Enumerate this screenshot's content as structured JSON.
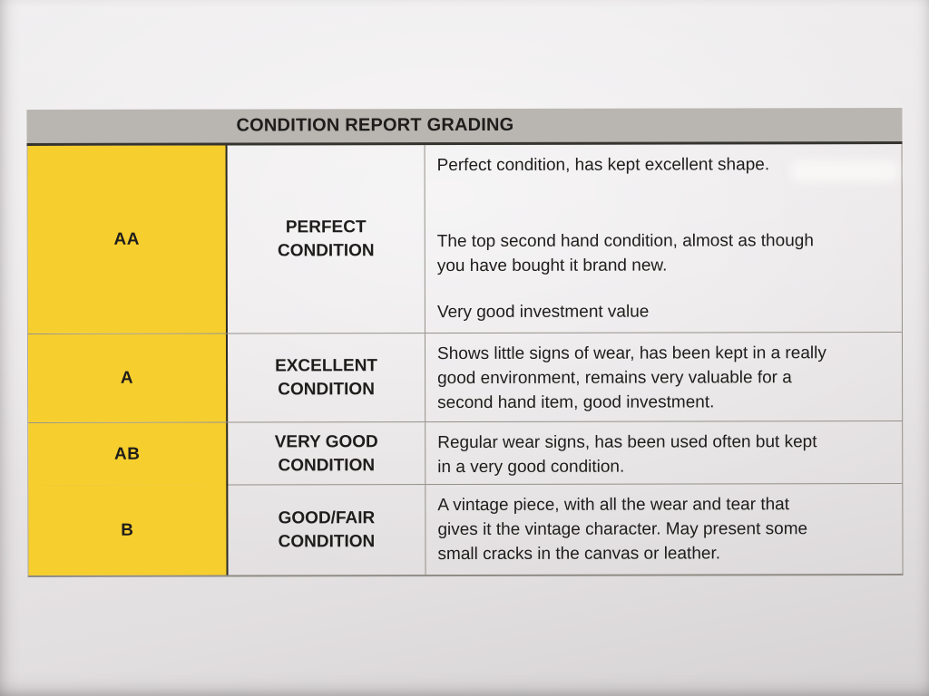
{
  "table": {
    "title": "CONDITION REPORT GRADING",
    "rows": [
      {
        "grade": "AA",
        "condition": [
          "PERFECT",
          "CONDITION"
        ],
        "paragraphs": [
          [
            "Perfect condition, has kept excellent shape."
          ],
          [
            "The top second hand condition, almost as though",
            "you have bought it brand new."
          ],
          [
            "Very good investment value"
          ]
        ]
      },
      {
        "grade": "A",
        "condition": [
          "EXCELLENT",
          "CONDITION"
        ],
        "paragraphs": [
          [
            "Shows little signs of wear, has been kept in a really",
            "good environment, remains very valuable for a",
            "second hand item, good investment."
          ]
        ]
      },
      {
        "grade": "AB",
        "condition": [
          "VERY GOOD",
          "CONDITION"
        ],
        "paragraphs": [
          [
            "Regular wear signs, has been used often but kept",
            "in a very good condition."
          ]
        ]
      },
      {
        "grade": "B",
        "condition": [
          "GOOD/FAIR",
          "CONDITION"
        ],
        "paragraphs": [
          [
            "A vintage piece, with all the wear and tear that",
            "gives it the vintage character. May present some",
            "small cracks in the canvas or leather."
          ]
        ]
      }
    ]
  },
  "colors": {
    "text": "#1e1d1b",
    "header_bg": "#b9b6b1",
    "grade_bg": "#f6ce2e",
    "border_dark": "#36342f",
    "border_light": "#94918a"
  }
}
